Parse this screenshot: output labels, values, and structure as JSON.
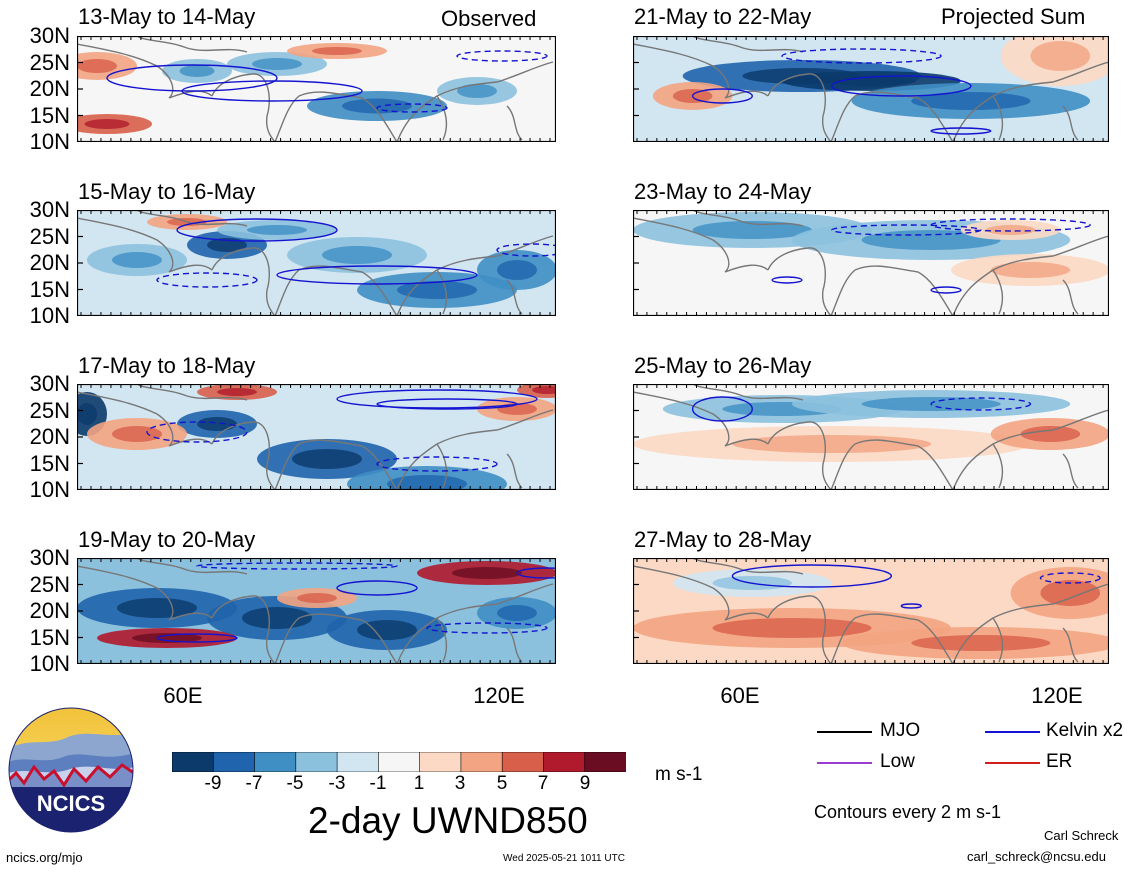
{
  "header": {
    "left_column_title": "Observed",
    "right_column_title": "Projected Sum"
  },
  "panels": [
    {
      "title": "13-May to 14-May",
      "column": "observed"
    },
    {
      "title": "15-May to 16-May",
      "column": "observed"
    },
    {
      "title": "17-May to 18-May",
      "column": "observed"
    },
    {
      "title": "19-May to 20-May",
      "column": "observed"
    },
    {
      "title": "21-May to 22-May",
      "column": "projected"
    },
    {
      "title": "23-May to 24-May",
      "column": "projected"
    },
    {
      "title": "25-May to 26-May",
      "column": "projected"
    },
    {
      "title": "27-May to 28-May",
      "column": "projected"
    }
  ],
  "lat_labels": [
    "30N",
    "25N",
    "20N",
    "15N",
    "10N"
  ],
  "lon_labels": [
    "60E",
    "120E"
  ],
  "colorbar": {
    "labels": [
      "-9",
      "-7",
      "-5",
      "-3",
      "-1",
      "1",
      "3",
      "5",
      "7",
      "9"
    ],
    "colors": [
      "#0b3a6b",
      "#1f64ac",
      "#3f8ec4",
      "#8cc1de",
      "#d2e6f2",
      "#f6f6f6",
      "#fcd9c4",
      "#f3a482",
      "#d85f4a",
      "#b01a2c",
      "#6a0d22"
    ],
    "units": "m s-1"
  },
  "legend": {
    "items": [
      {
        "label": "MJO",
        "color": "#000000"
      },
      {
        "label": "Kelvin x2",
        "color": "#1414d0"
      },
      {
        "label": "Low",
        "color": "#9a3ccf"
      },
      {
        "label": "ER",
        "color": "#d41e1e"
      }
    ],
    "contours_note": "Contours every 2 m s-1"
  },
  "main_title": "2-day UWND850",
  "logo": {
    "text": "NCICS"
  },
  "footer": {
    "url": "ncics.org/mjo",
    "timestamp": "Wed 2025-05-21 1011 UTC",
    "author": "Carl Schreck",
    "email": "carl_schreck@ncsu.edu"
  }
}
